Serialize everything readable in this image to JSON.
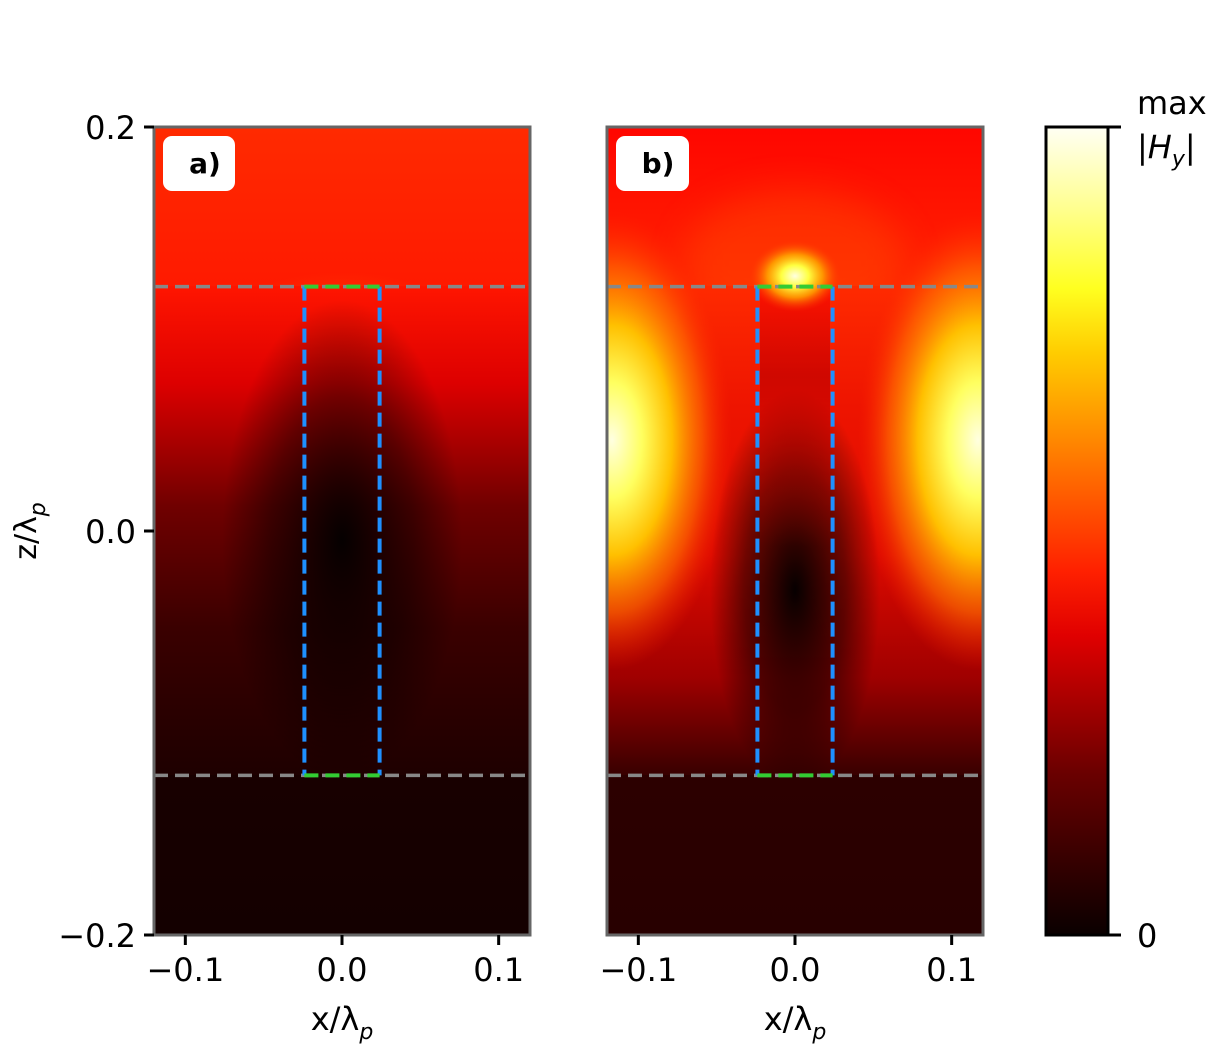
{
  "chart_data": [
    {
      "type": "heatmap",
      "panel_label": "a)",
      "quantity": "|Hy| field magnitude",
      "xlabel": "x/λp",
      "ylabel": "z/λp",
      "xlim": [
        -0.12,
        0.12
      ],
      "ylim": [
        -0.2,
        0.2
      ],
      "xticks": [
        -0.1,
        0.0,
        0.1
      ],
      "xtick_labels": [
        "−0.1",
        "0.0",
        "0.1"
      ],
      "yticks": [
        -0.2,
        0.0,
        0.2
      ],
      "ytick_labels": [
        "−0.2",
        "0.0",
        "0.2"
      ],
      "layer_boundaries_z": [
        0.121,
        -0.121
      ],
      "rod_x_bounds": [
        -0.024,
        0.024
      ],
      "field_description": "strong (red) above top boundary, dark minimum near z=0 inside rod, near-zero below bottom boundary"
    },
    {
      "type": "heatmap",
      "panel_label": "b)",
      "quantity": "|Hy| field magnitude",
      "xlabel": "x/λp",
      "ylabel": "",
      "xlim": [
        -0.12,
        0.12
      ],
      "ylim": [
        -0.2,
        0.2
      ],
      "xticks": [
        -0.1,
        0.0,
        0.1
      ],
      "xtick_labels": [
        "−0.1",
        "0.0",
        "0.1"
      ],
      "layer_boundaries_z": [
        0.121,
        -0.121
      ],
      "rod_x_bounds": [
        -0.024,
        0.024
      ],
      "field_description": "hot spot at top of rod (z≈0.125), bright yellow lobes at left/right edges near z=0.05, dark minimum inside rod near z=-0.04"
    }
  ],
  "colorbar": {
    "colormap": "hot",
    "min_label": "0",
    "max_label_line1": "max",
    "max_label_line2": "|Hy|",
    "min_value": 0,
    "max_value": 1
  },
  "colors": {
    "frame": "#666666",
    "layer_line": "#888888",
    "rod_side": "#1e90ff",
    "rod_cap": "#33cc33"
  }
}
